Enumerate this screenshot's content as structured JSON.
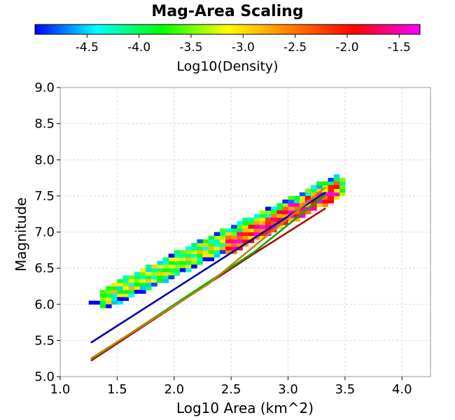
{
  "chart_data": {
    "type": "heatmap",
    "title": "Mag-Area Scaling",
    "xlabel": "Log10 Area (km^2)",
    "ylabel": "Magnitude",
    "xlim": [
      1.0,
      4.25
    ],
    "ylim": [
      5.0,
      9.0
    ],
    "xticks": [
      "1.0",
      "1.5",
      "2.0",
      "2.5",
      "3.0",
      "3.5",
      "4.0"
    ],
    "yticks": [
      "5.0",
      "5.5",
      "6.0",
      "6.5",
      "7.0",
      "7.5",
      "8.0",
      "8.5",
      "9.0"
    ],
    "grid": true,
    "colorbar": {
      "label": "Log10(Density)",
      "range": [
        -5.0,
        -1.3
      ],
      "ticks": [
        "-4.5",
        "-4.0",
        "-3.5",
        "-3.0",
        "-2.5",
        "-2.0",
        "-1.5"
      ],
      "colors": [
        "#0000ff",
        "#00ffff",
        "#00ff00",
        "#ffff00",
        "#ff8000",
        "#ff0000",
        "#ff00ff"
      ]
    },
    "bin_size": {
      "dx": 0.05,
      "dy": 0.05
    },
    "density_bands": [
      {
        "x_start": 1.25,
        "x_end": 1.35,
        "y_at_start": 6.02,
        "y_at_end": 6.02,
        "width": 0.02,
        "density": -4.9
      },
      {
        "x_start": 1.35,
        "x_end": 3.45,
        "y_at_start": 6.07,
        "y_at_end": 7.6,
        "width": 0.1,
        "density": -3.2
      },
      {
        "x_start": 1.4,
        "x_end": 3.4,
        "y_at_start": 6.0,
        "y_at_end": 7.5,
        "width": 0.06,
        "density": -4.3
      },
      {
        "x_start": 1.4,
        "x_end": 3.4,
        "y_at_start": 6.18,
        "y_at_end": 7.7,
        "width": 0.06,
        "density": -3.8
      },
      {
        "x_start": 2.45,
        "x_end": 3.4,
        "y_at_start": 6.78,
        "y_at_end": 7.55,
        "width": 0.1,
        "density": -1.8
      },
      {
        "x_start": 2.7,
        "x_end": 3.35,
        "y_at_start": 7.0,
        "y_at_end": 7.52,
        "width": 0.06,
        "density": -1.5
      }
    ],
    "series": [
      {
        "color": "#0000aa",
        "x": [
          1.27,
          3.33
        ],
        "y": [
          5.47,
          7.55
        ]
      },
      {
        "color": "#b30000",
        "x": [
          1.27,
          2.7,
          3.33
        ],
        "y": [
          5.22,
          6.7,
          7.33
        ]
      },
      {
        "color": "#00aa00",
        "x": [
          1.27,
          2.7,
          3.33
        ],
        "y": [
          5.24,
          6.72,
          7.52
        ]
      },
      {
        "color": "#b8860b",
        "x": [
          1.27,
          2.3,
          3.33
        ],
        "y": [
          5.25,
          6.28,
          7.62
        ]
      }
    ]
  }
}
